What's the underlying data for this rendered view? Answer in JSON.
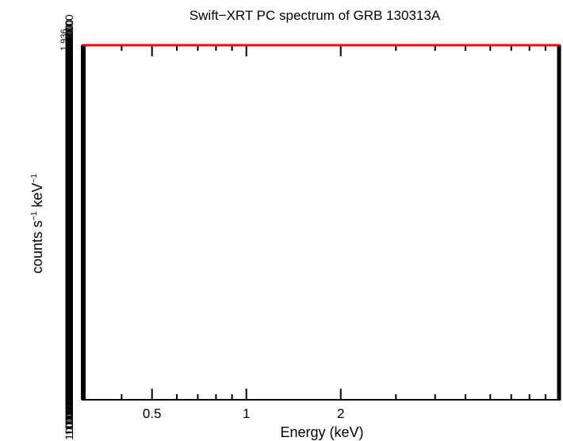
{
  "chart_data": {
    "type": "line",
    "title": "Swift−XRT PC spectrum of GRB 130313A",
    "xlabel": "Energy (keV)",
    "ylabel_main": "counts s",
    "ylabel_exp1": "−1",
    "ylabel_mid": " keV",
    "ylabel_exp2": "−1",
    "x_scale": "log",
    "xlim": [
      0.3,
      10
    ],
    "x_ticks": [
      {
        "value": 0.5,
        "label": "0.5"
      },
      {
        "value": 1,
        "label": "1"
      },
      {
        "value": 2,
        "label": "2"
      }
    ],
    "y_tick_label": "1",
    "y_tick_top_label": "1.936",
    "series": [
      {
        "color": "#ff0000",
        "x": [
          0.3,
          10
        ],
        "y": [
          1,
          1
        ]
      }
    ],
    "grid": false,
    "legend": "none"
  }
}
